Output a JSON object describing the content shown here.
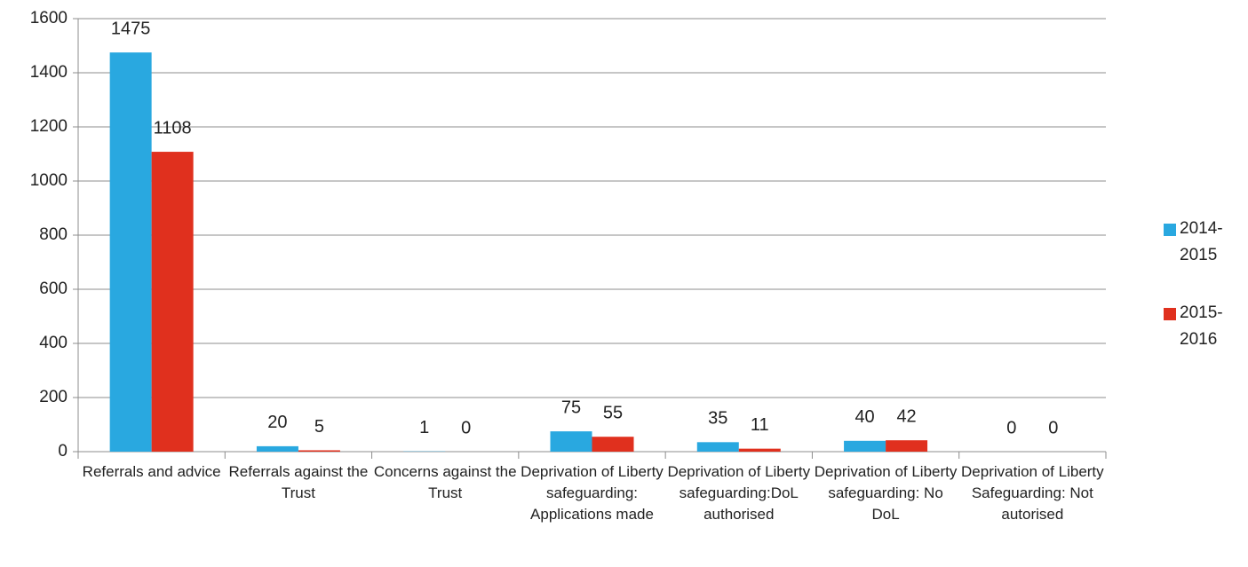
{
  "chart_data": {
    "type": "bar",
    "categories": [
      "Referrals and advice",
      "Referrals against the Trust",
      "Concerns against the Trust",
      "Deprivation of Liberty safeguarding: Applications made",
      "Deprivation of Liberty safeguarding:DoL authorised",
      "Deprivation of Liberty safeguarding: No DoL",
      "Deprivation of Liberty Safeguarding: Not autorised"
    ],
    "series": [
      {
        "name": "2014-2015",
        "color": "#29a8e0",
        "values": [
          1475,
          20,
          1,
          75,
          35,
          40,
          0
        ]
      },
      {
        "name": "2015-2016",
        "color": "#e0301e",
        "values": [
          1108,
          5,
          0,
          55,
          11,
          42,
          0
        ]
      }
    ],
    "ylim": [
      0,
      1600
    ],
    "yticks": [
      0,
      200,
      400,
      600,
      800,
      1000,
      1200,
      1400,
      1600
    ],
    "grid": true,
    "legend": "right"
  }
}
